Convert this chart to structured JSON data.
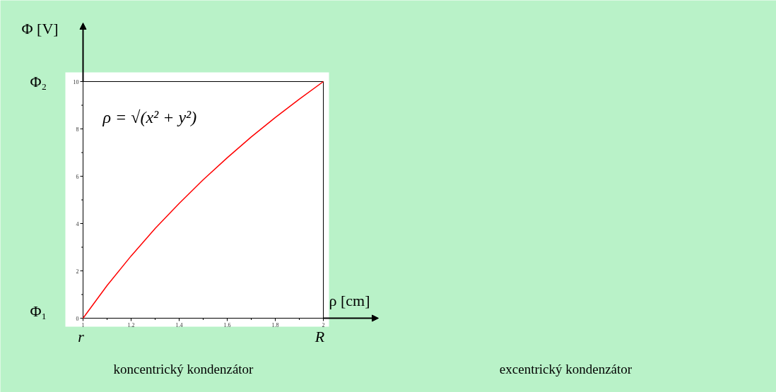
{
  "chart_data": {
    "type": "line",
    "xlabel": "ρ [cm]",
    "ylabel": "Φ [V]",
    "x": [
      1,
      1.1,
      1.2,
      1.3,
      1.4,
      1.5,
      1.6,
      1.7,
      1.8,
      1.9,
      2
    ],
    "series": [
      {
        "color": "#ff0000",
        "values": [
          0,
          1.38,
          2.63,
          3.79,
          4.85,
          5.85,
          6.78,
          7.66,
          8.48,
          9.26,
          10
        ]
      }
    ],
    "xlim": [
      1,
      2
    ],
    "ylim": [
      0,
      10
    ],
    "xticks": [
      1,
      1.2,
      1.4,
      1.6,
      1.8,
      2
    ],
    "yticks": [
      0,
      2,
      4,
      6,
      8,
      10
    ],
    "grid": false,
    "marker": "none",
    "line_style": "solid",
    "annotations": [
      "Φ₂",
      "Φ₁",
      "r",
      "R",
      "ρ = √(x² + y²)",
      "koncentrický kondenzátor",
      "excentrický kondenzátor"
    ]
  }
}
